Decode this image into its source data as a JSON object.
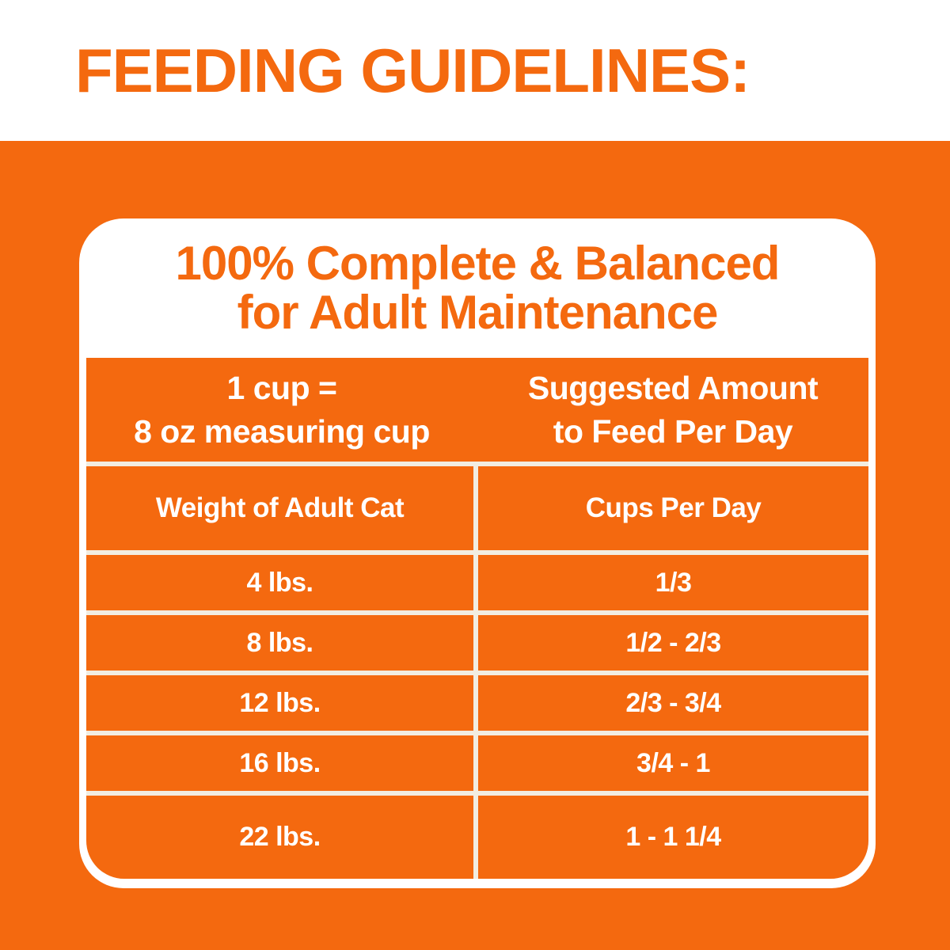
{
  "header": {
    "title": "FEEDING GUIDELINES:"
  },
  "card": {
    "heading_line1": "100% Complete & Balanced",
    "heading_line2": "for Adult Maintenance",
    "banner": {
      "left_line1": "1 cup =",
      "left_line2": "8 oz measuring cup",
      "right_line1": "Suggested Amount",
      "right_line2": "to Feed Per Day"
    },
    "table": {
      "columns": [
        "Weight of Adult Cat",
        "Cups Per Day"
      ],
      "rows": [
        {
          "weight": "4 lbs.",
          "cups": "1/3"
        },
        {
          "weight": "8 lbs.",
          "cups": "1/2 - 2/3"
        },
        {
          "weight": "12 lbs.",
          "cups": "2/3 - 3/4"
        },
        {
          "weight": "16 lbs.",
          "cups": "3/4 - 1"
        },
        {
          "weight": "22 lbs.",
          "cups": "1 - 1 1/4"
        }
      ]
    }
  },
  "colors": {
    "brand_orange": "#F4690F",
    "card_white": "#FFFFFF",
    "gridline_cream": "#F2EDE1"
  }
}
